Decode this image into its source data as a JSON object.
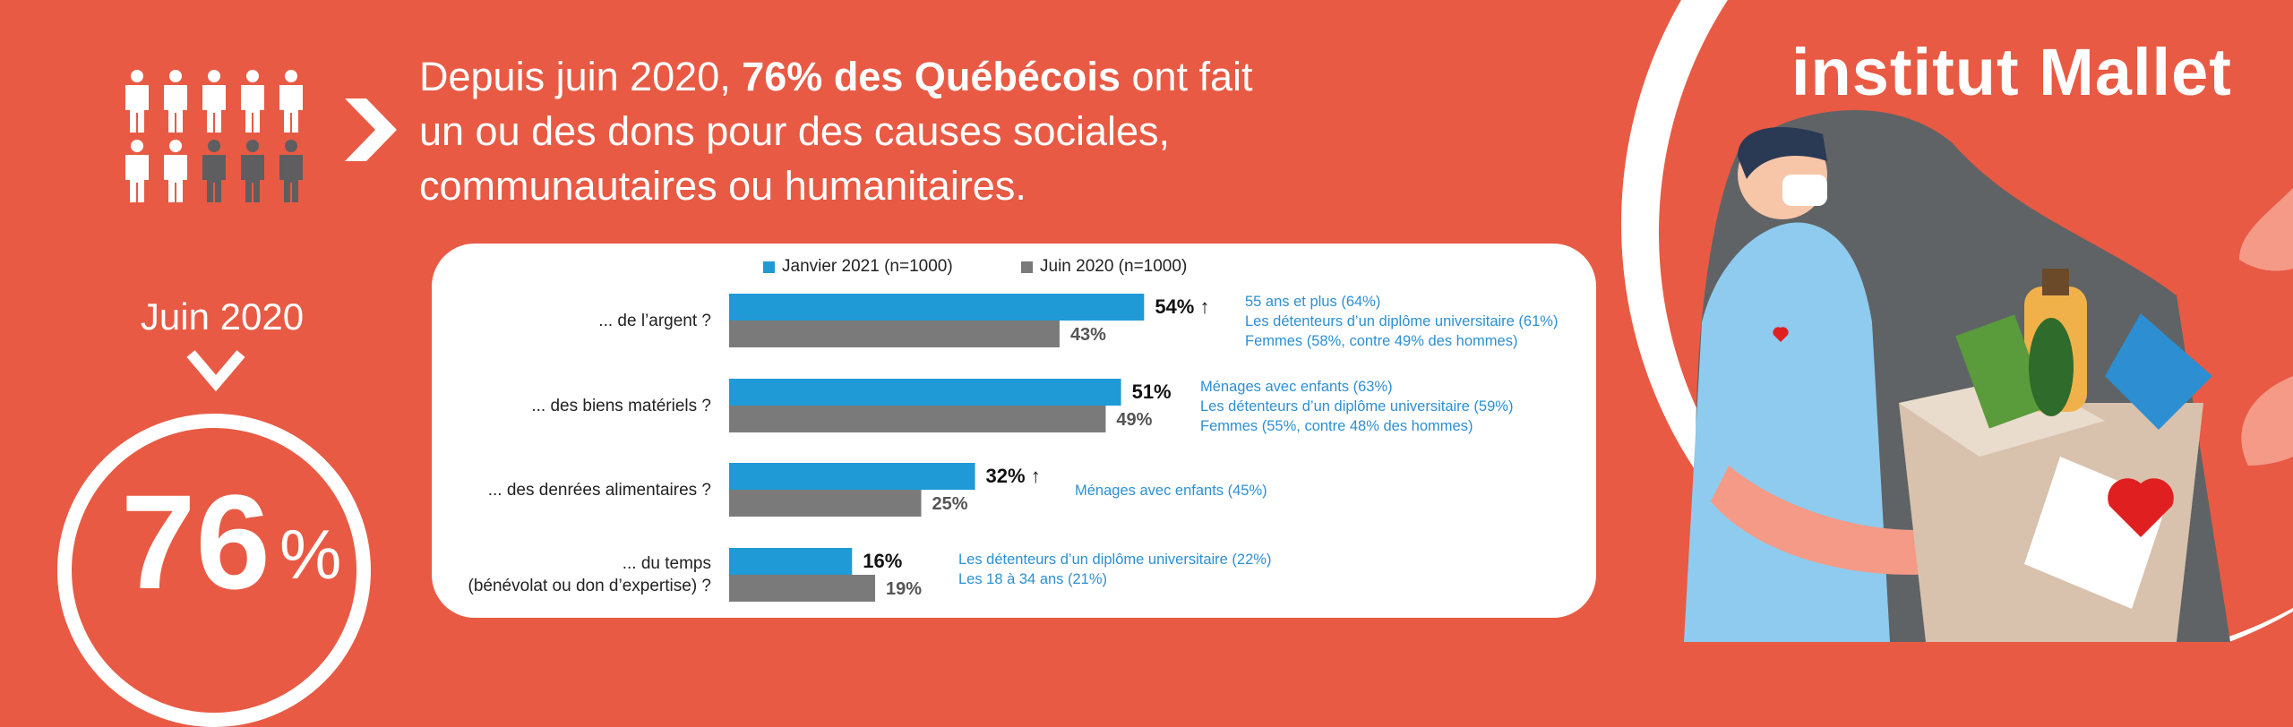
{
  "headline": {
    "prefix": "Depuis juin 2020, ",
    "highlight": "76% des Québécois",
    "suffix_line1": " ont fait",
    "line2": "un ou des dons pour des causes sociales,",
    "line3": "communautaires ou humanitaires."
  },
  "badge": {
    "label": "Juin 2020",
    "value": "76",
    "unit": "%"
  },
  "brand": {
    "name": "institut Mallet"
  },
  "people_icons": {
    "total": 10,
    "highlighted": 7
  },
  "colors": {
    "background": "#e85a44",
    "series_new": "#1f9ad6",
    "series_old": "#7a7a7a",
    "note": "#2d8fd2"
  },
  "chart_data": {
    "type": "bar",
    "orientation": "horizontal",
    "categories": [
      "... de l’argent ?",
      "... des biens matériels ?",
      "... des denrées alimentaires ?",
      "... du temps (bénévolat ou don d’expertise) ?"
    ],
    "category_lines": [
      [
        "... de l’argent ?"
      ],
      [
        "... des biens matériels ?"
      ],
      [
        "... des denrées alimentaires ?"
      ],
      [
        "... du temps",
        "(bénévolat ou don d’expertise) ?"
      ]
    ],
    "series": [
      {
        "name": "Janvier 2021 (n=1000)",
        "values": [
          54,
          51,
          32,
          16
        ],
        "labels": [
          "54%",
          "51%",
          "32%",
          "16%"
        ],
        "arrow_up": [
          true,
          false,
          true,
          false
        ]
      },
      {
        "name": "Juin 2020 (n=1000)",
        "values": [
          43,
          49,
          25,
          19
        ],
        "labels": [
          "43%",
          "49%",
          "25%",
          "19%"
        ]
      }
    ],
    "xlim": [
      0,
      100
    ],
    "annotations": [
      [
        "55 ans et plus (64%)",
        "Les détenteurs d’un diplôme universitaire (61%)",
        "Femmes (58%, contre 49% des hommes)"
      ],
      [
        "Ménages avec enfants (63%)",
        "Les détenteurs d’un diplôme universitaire (59%)",
        "Femmes (55%, contre 48% des hommes)"
      ],
      [
        "Ménages avec enfants (45%)"
      ],
      [
        "Les détenteurs d’un diplôme universitaire (22%)",
        "Les 18 à 34 ans (21%)"
      ]
    ],
    "legend_position": "top"
  }
}
